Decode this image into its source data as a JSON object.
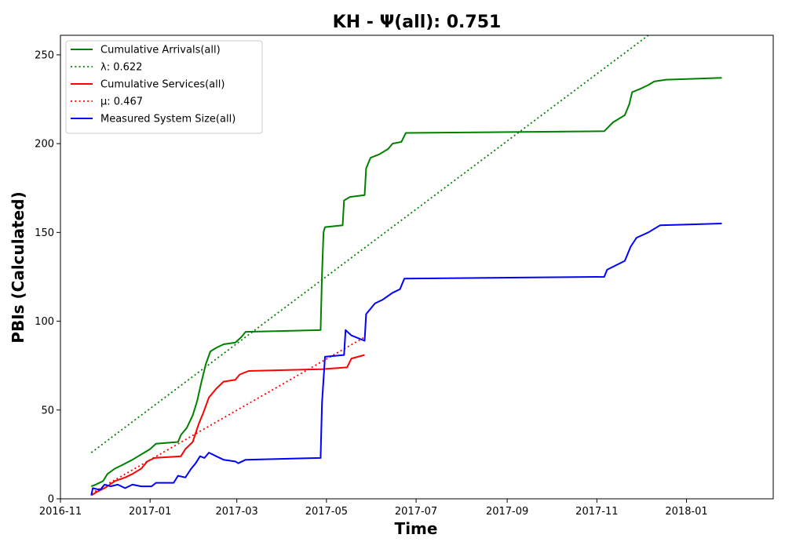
{
  "chart_data": {
    "type": "line",
    "title": "KH -  Ψ(all): 0.751",
    "xlabel": "Time",
    "ylabel": "PBIs (Calculated)",
    "xlim": [
      "2016-11-01",
      "2018-03-01"
    ],
    "ylim": [
      0,
      261
    ],
    "x_ticks": [
      "2016-11",
      "2017-01",
      "2017-03",
      "2017-05",
      "2017-07",
      "2017-09",
      "2017-11",
      "2018-01"
    ],
    "y_ticks": [
      0,
      50,
      100,
      150,
      200,
      250
    ],
    "grid": false,
    "legend_position": "upper-left",
    "series": [
      {
        "name": "Cumulative Arrivals(all)",
        "color": "#008000",
        "style": "solid",
        "points": [
          [
            "2016-11-22",
            7
          ],
          [
            "2016-11-25",
            8
          ],
          [
            "2016-11-30",
            10
          ],
          [
            "2016-12-03",
            14
          ],
          [
            "2016-12-08",
            17
          ],
          [
            "2016-12-13",
            19
          ],
          [
            "2016-12-20",
            22
          ],
          [
            "2016-12-26",
            25
          ],
          [
            "2017-01-01",
            28
          ],
          [
            "2017-01-05",
            31
          ],
          [
            "2017-01-20",
            32
          ],
          [
            "2017-01-22",
            36
          ],
          [
            "2017-01-26",
            40
          ],
          [
            "2017-01-30",
            47
          ],
          [
            "2017-02-02",
            55
          ],
          [
            "2017-02-05",
            66
          ],
          [
            "2017-02-08",
            76
          ],
          [
            "2017-02-11",
            83
          ],
          [
            "2017-02-15",
            85
          ],
          [
            "2017-02-20",
            87
          ],
          [
            "2017-02-28",
            88
          ],
          [
            "2017-03-04",
            91
          ],
          [
            "2017-03-07",
            94
          ],
          [
            "2017-04-27",
            95
          ],
          [
            "2017-04-28",
            126
          ],
          [
            "2017-04-29",
            150
          ],
          [
            "2017-04-30",
            153
          ],
          [
            "2017-05-12",
            154
          ],
          [
            "2017-05-13",
            168
          ],
          [
            "2017-05-17",
            170
          ],
          [
            "2017-05-27",
            171
          ],
          [
            "2017-05-28",
            186
          ],
          [
            "2017-05-31",
            192
          ],
          [
            "2017-06-06",
            194
          ],
          [
            "2017-06-12",
            197
          ],
          [
            "2017-06-15",
            200
          ],
          [
            "2017-06-21",
            201
          ],
          [
            "2017-06-24",
            206
          ],
          [
            "2017-11-06",
            207
          ],
          [
            "2017-11-12",
            212
          ],
          [
            "2017-11-20",
            216
          ],
          [
            "2017-11-23",
            222
          ],
          [
            "2017-11-25",
            229
          ],
          [
            "2017-12-01",
            231
          ],
          [
            "2017-12-06",
            233
          ],
          [
            "2017-12-10",
            235
          ],
          [
            "2017-12-18",
            236
          ],
          [
            "2018-01-25",
            237
          ]
        ]
      },
      {
        "name": "λ: 0.622",
        "color": "#008000",
        "style": "dotted",
        "points": [
          [
            "2016-11-22",
            26
          ],
          [
            "2017-12-06",
            261
          ]
        ]
      },
      {
        "name": "Cumulative Services(all)",
        "color": "#ff0000",
        "style": "solid",
        "points": [
          [
            "2016-11-22",
            2
          ],
          [
            "2016-11-26",
            4
          ],
          [
            "2016-12-01",
            6
          ],
          [
            "2016-12-08",
            10
          ],
          [
            "2016-12-15",
            12
          ],
          [
            "2016-12-20",
            14
          ],
          [
            "2016-12-26",
            17
          ],
          [
            "2016-12-30",
            21
          ],
          [
            "2017-01-04",
            23
          ],
          [
            "2017-01-22",
            24
          ],
          [
            "2017-01-25",
            28
          ],
          [
            "2017-01-30",
            32
          ],
          [
            "2017-02-03",
            42
          ],
          [
            "2017-02-06",
            48
          ],
          [
            "2017-02-10",
            57
          ],
          [
            "2017-02-15",
            62
          ],
          [
            "2017-02-20",
            66
          ],
          [
            "2017-02-28",
            67
          ],
          [
            "2017-03-03",
            70
          ],
          [
            "2017-03-09",
            72
          ],
          [
            "2017-04-28",
            73
          ],
          [
            "2017-05-15",
            74
          ],
          [
            "2017-05-18",
            79
          ],
          [
            "2017-05-27",
            81
          ]
        ]
      },
      {
        "name": "μ: 0.467",
        "color": "#ff0000",
        "style": "dotted",
        "points": [
          [
            "2016-11-22",
            3
          ],
          [
            "2017-05-27",
            91
          ]
        ]
      },
      {
        "name": "Measured System Size(all)",
        "color": "#0000ff",
        "style": "solid",
        "points": [
          [
            "2016-11-22",
            2
          ],
          [
            "2016-11-23",
            6
          ],
          [
            "2016-11-28",
            5
          ],
          [
            "2016-12-01",
            8
          ],
          [
            "2016-12-05",
            7
          ],
          [
            "2016-12-10",
            8
          ],
          [
            "2016-12-15",
            6
          ],
          [
            "2016-12-20",
            8
          ],
          [
            "2016-12-26",
            7
          ],
          [
            "2017-01-02",
            7
          ],
          [
            "2017-01-05",
            9
          ],
          [
            "2017-01-17",
            9
          ],
          [
            "2017-01-20",
            13
          ],
          [
            "2017-01-25",
            12
          ],
          [
            "2017-01-29",
            17
          ],
          [
            "2017-02-01",
            20
          ],
          [
            "2017-02-04",
            24
          ],
          [
            "2017-02-07",
            23
          ],
          [
            "2017-02-10",
            26
          ],
          [
            "2017-02-15",
            24
          ],
          [
            "2017-02-20",
            22
          ],
          [
            "2017-02-28",
            21
          ],
          [
            "2017-03-02",
            20
          ],
          [
            "2017-03-07",
            22
          ],
          [
            "2017-04-27",
            23
          ],
          [
            "2017-04-28",
            54
          ],
          [
            "2017-04-30",
            80
          ],
          [
            "2017-05-13",
            81
          ],
          [
            "2017-05-14",
            95
          ],
          [
            "2017-05-18",
            92
          ],
          [
            "2017-05-27",
            89
          ],
          [
            "2017-05-28",
            104
          ],
          [
            "2017-06-03",
            110
          ],
          [
            "2017-06-08",
            112
          ],
          [
            "2017-06-15",
            116
          ],
          [
            "2017-06-20",
            118
          ],
          [
            "2017-06-23",
            124
          ],
          [
            "2017-11-06",
            125
          ],
          [
            "2017-11-08",
            129
          ],
          [
            "2017-11-20",
            134
          ],
          [
            "2017-11-24",
            142
          ],
          [
            "2017-11-28",
            147
          ],
          [
            "2017-12-06",
            150
          ],
          [
            "2017-12-14",
            154
          ],
          [
            "2018-01-25",
            155
          ]
        ]
      }
    ]
  }
}
